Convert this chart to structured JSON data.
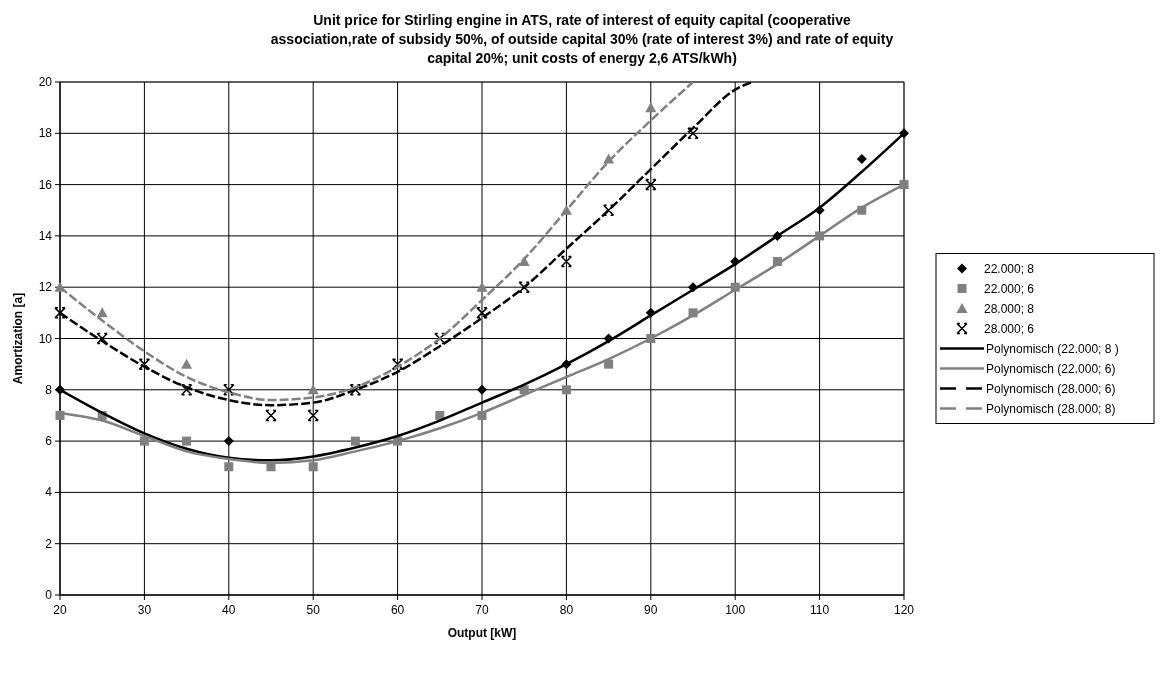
{
  "chart_data": {
    "type": "scatter",
    "title": "Unit price for Stirling engine in ATS, rate of interest of equity capital (cooperative association,rate of subsidy 50%, of outside capital 30% (rate of interest 3%) and rate of equity capital 20%; unit costs of energy 2,6 ATS/kWh)",
    "xlabel": "Output [kW]",
    "ylabel": "Amortization [a]",
    "xlim": [
      20,
      120
    ],
    "xticks": [
      20,
      30,
      40,
      50,
      60,
      70,
      80,
      90,
      100,
      110,
      120
    ],
    "ylim": [
      0,
      20
    ],
    "yticks": [
      0,
      2,
      4,
      6,
      8,
      10,
      12,
      14,
      16,
      18,
      20
    ],
    "grid": true,
    "legend": "right",
    "series": [
      {
        "name": "22.000; 8",
        "type": "scatter",
        "marker": "diamond",
        "color": "#000000",
        "x": [
          20,
          40,
          70,
          80,
          85,
          90,
          95,
          100,
          105,
          110,
          115,
          120
        ],
        "values": [
          8,
          6,
          8,
          9,
          10,
          11,
          12,
          13,
          14,
          15,
          17,
          18
        ]
      },
      {
        "name": "22.000; 6",
        "type": "scatter",
        "marker": "square",
        "color": "#808080",
        "x": [
          20,
          25,
          30,
          35,
          40,
          45,
          50,
          55,
          60,
          65,
          70,
          75,
          80,
          85,
          90,
          95,
          100,
          105,
          110,
          115,
          120
        ],
        "values": [
          7,
          7,
          6,
          6,
          5,
          5,
          5,
          6,
          6,
          7,
          7,
          8,
          8,
          9,
          10,
          11,
          12,
          13,
          14,
          15,
          16
        ]
      },
      {
        "name": "28.000; 8",
        "type": "scatter",
        "marker": "triangle",
        "color": "#808080",
        "x": [
          20,
          25,
          35,
          40,
          50,
          70,
          75,
          80,
          85,
          90
        ],
        "values": [
          12,
          11,
          9,
          null,
          8,
          12,
          13,
          15,
          17,
          19
        ]
      },
      {
        "name": "28.000; 6",
        "type": "scatter",
        "marker": "cross",
        "color": "#000000",
        "x": [
          20,
          25,
          30,
          35,
          40,
          45,
          50,
          55,
          60,
          65,
          70,
          75,
          80,
          85,
          90,
          95
        ],
        "values": [
          11,
          10,
          9,
          8,
          8,
          7,
          7,
          8,
          9,
          10,
          11,
          12,
          13,
          15,
          16,
          18
        ]
      },
      {
        "name": "Polynomisch (22.000; 8 )",
        "type": "line",
        "line_style": "solid",
        "color": "#000000",
        "x": [
          20,
          25,
          30,
          35,
          40,
          45,
          50,
          55,
          60,
          65,
          70,
          75,
          80,
          85,
          90,
          95,
          100,
          105,
          110,
          115,
          120
        ],
        "values": [
          8,
          7.1,
          6.3,
          5.7,
          5.35,
          5.25,
          5.4,
          5.75,
          6.2,
          6.8,
          7.5,
          8.2,
          9.0,
          9.9,
          10.9,
          11.9,
          12.9,
          14,
          15.1,
          16.5,
          18
        ]
      },
      {
        "name": "Polynomisch (22.000; 6)",
        "type": "line",
        "line_style": "solid",
        "color": "#808080",
        "x": [
          20,
          25,
          30,
          35,
          40,
          45,
          50,
          55,
          60,
          65,
          70,
          75,
          80,
          85,
          90,
          95,
          100,
          105,
          110,
          115,
          120
        ],
        "values": [
          7.1,
          6.8,
          6.2,
          5.6,
          5.3,
          5.15,
          5.25,
          5.6,
          6.0,
          6.5,
          7.1,
          7.8,
          8.5,
          9.2,
          10,
          10.9,
          11.9,
          12.9,
          14,
          15.1,
          16
        ]
      },
      {
        "name": "Polynomisch (28.000; 6)",
        "type": "line",
        "line_style": "dashed",
        "color": "#000000",
        "x": [
          20,
          25,
          30,
          35,
          40,
          45,
          50,
          55,
          60,
          65,
          70,
          75,
          80,
          85,
          90,
          95,
          100,
          102
        ],
        "values": [
          11,
          9.9,
          8.9,
          8.1,
          7.6,
          7.4,
          7.5,
          8,
          8.7,
          9.7,
          10.8,
          12,
          13.5,
          15,
          16.6,
          18.2,
          19.7,
          20
        ]
      },
      {
        "name": "Polynomisch (28.000; 8)",
        "type": "line",
        "line_style": "dashed",
        "color": "#808080",
        "x": [
          20,
          25,
          30,
          35,
          40,
          45,
          50,
          55,
          60,
          65,
          70,
          75,
          80,
          85,
          90,
          95
        ],
        "values": [
          12,
          10.7,
          9.5,
          8.5,
          7.9,
          7.6,
          7.7,
          8.1,
          8.9,
          10,
          11.5,
          13.1,
          15,
          16.9,
          18.5,
          20
        ]
      }
    ]
  }
}
